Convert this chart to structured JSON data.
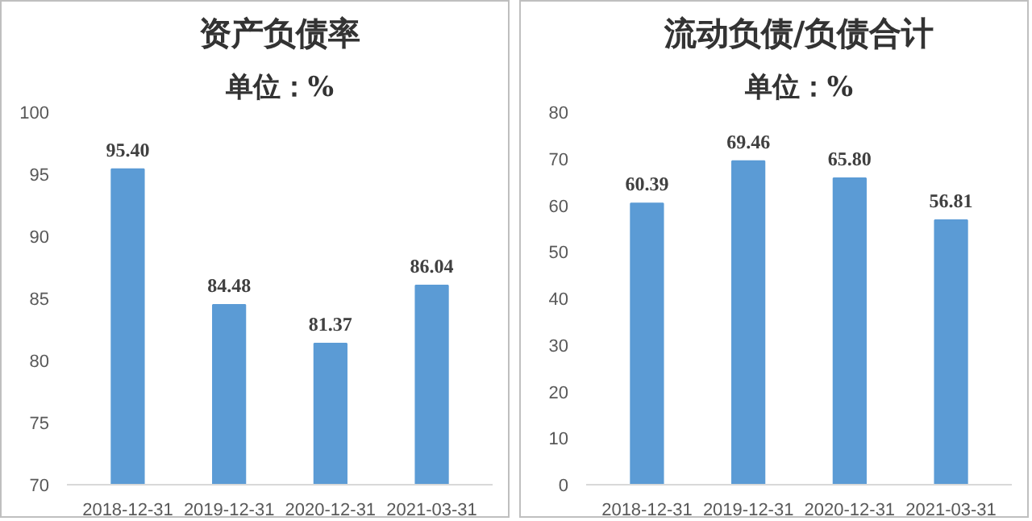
{
  "chart_data": [
    {
      "type": "bar",
      "title": "资产负债率",
      "subtitle": "单位：%",
      "categories": [
        "2018-12-31",
        "2019-12-31",
        "2020-12-31",
        "2021-03-31"
      ],
      "values": [
        95.4,
        84.48,
        81.37,
        86.04
      ],
      "value_labels": [
        "95.40",
        "84.48",
        "81.37",
        "86.04"
      ],
      "color": "#5b9bd5",
      "ylim": [
        70,
        100
      ],
      "yticks": [
        70,
        75,
        80,
        85,
        90,
        95,
        100
      ],
      "grid": false
    },
    {
      "type": "bar",
      "title": "流动负债/负债合计",
      "subtitle": "单位：%",
      "categories": [
        "2018-12-31",
        "2019-12-31",
        "2020-12-31",
        "2021-03-31"
      ],
      "values": [
        60.39,
        69.46,
        65.8,
        56.81
      ],
      "value_labels": [
        "60.39",
        "69.46",
        "65.80",
        "56.81"
      ],
      "color": "#5b9bd5",
      "ylim": [
        0,
        80
      ],
      "yticks": [
        0,
        10,
        20,
        30,
        40,
        50,
        60,
        70,
        80
      ],
      "grid": false
    }
  ]
}
